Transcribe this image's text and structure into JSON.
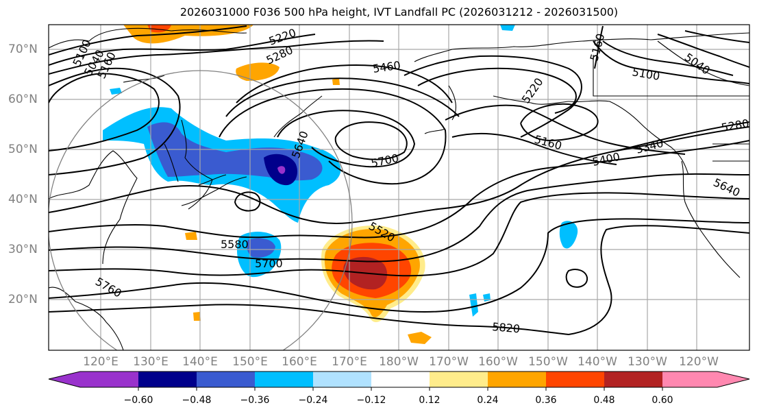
{
  "title": "2026031000 F036 500 hPa height, IVT Landfall PC (2026031212 - 2026031500)",
  "map": {
    "lat_labels": [
      "70°N",
      "60°N",
      "50°N",
      "40°N",
      "30°N",
      "20°N"
    ],
    "lon_labels": [
      "120°E",
      "130°E",
      "140°E",
      "150°E",
      "160°E",
      "170°E",
      "180°W",
      "170°W",
      "160°W",
      "150°W",
      "140°W",
      "130°W",
      "120°W"
    ],
    "contour_labels": [
      "5040",
      "5100",
      "5160",
      "5220",
      "5280",
      "5460",
      "5640",
      "5700",
      "5580",
      "5700",
      "5760",
      "5520",
      "5220",
      "5160",
      "5160",
      "5100",
      "5040",
      "5280",
      "5340",
      "5400",
      "5640",
      "5820"
    ]
  },
  "colorbar": {
    "ticks": [
      "−0.60",
      "−0.48",
      "−0.36",
      "−0.24",
      "−0.12",
      "0.12",
      "0.24",
      "0.36",
      "0.48",
      "0.60"
    ],
    "colors": [
      "#9932cc",
      "#00008b",
      "#3a5bd0",
      "#00bfff",
      "#b0e2ff",
      "#ffffff",
      "#ffec8b",
      "#ffa500",
      "#ff4500",
      "#b22222",
      "#ff88b0"
    ]
  }
}
